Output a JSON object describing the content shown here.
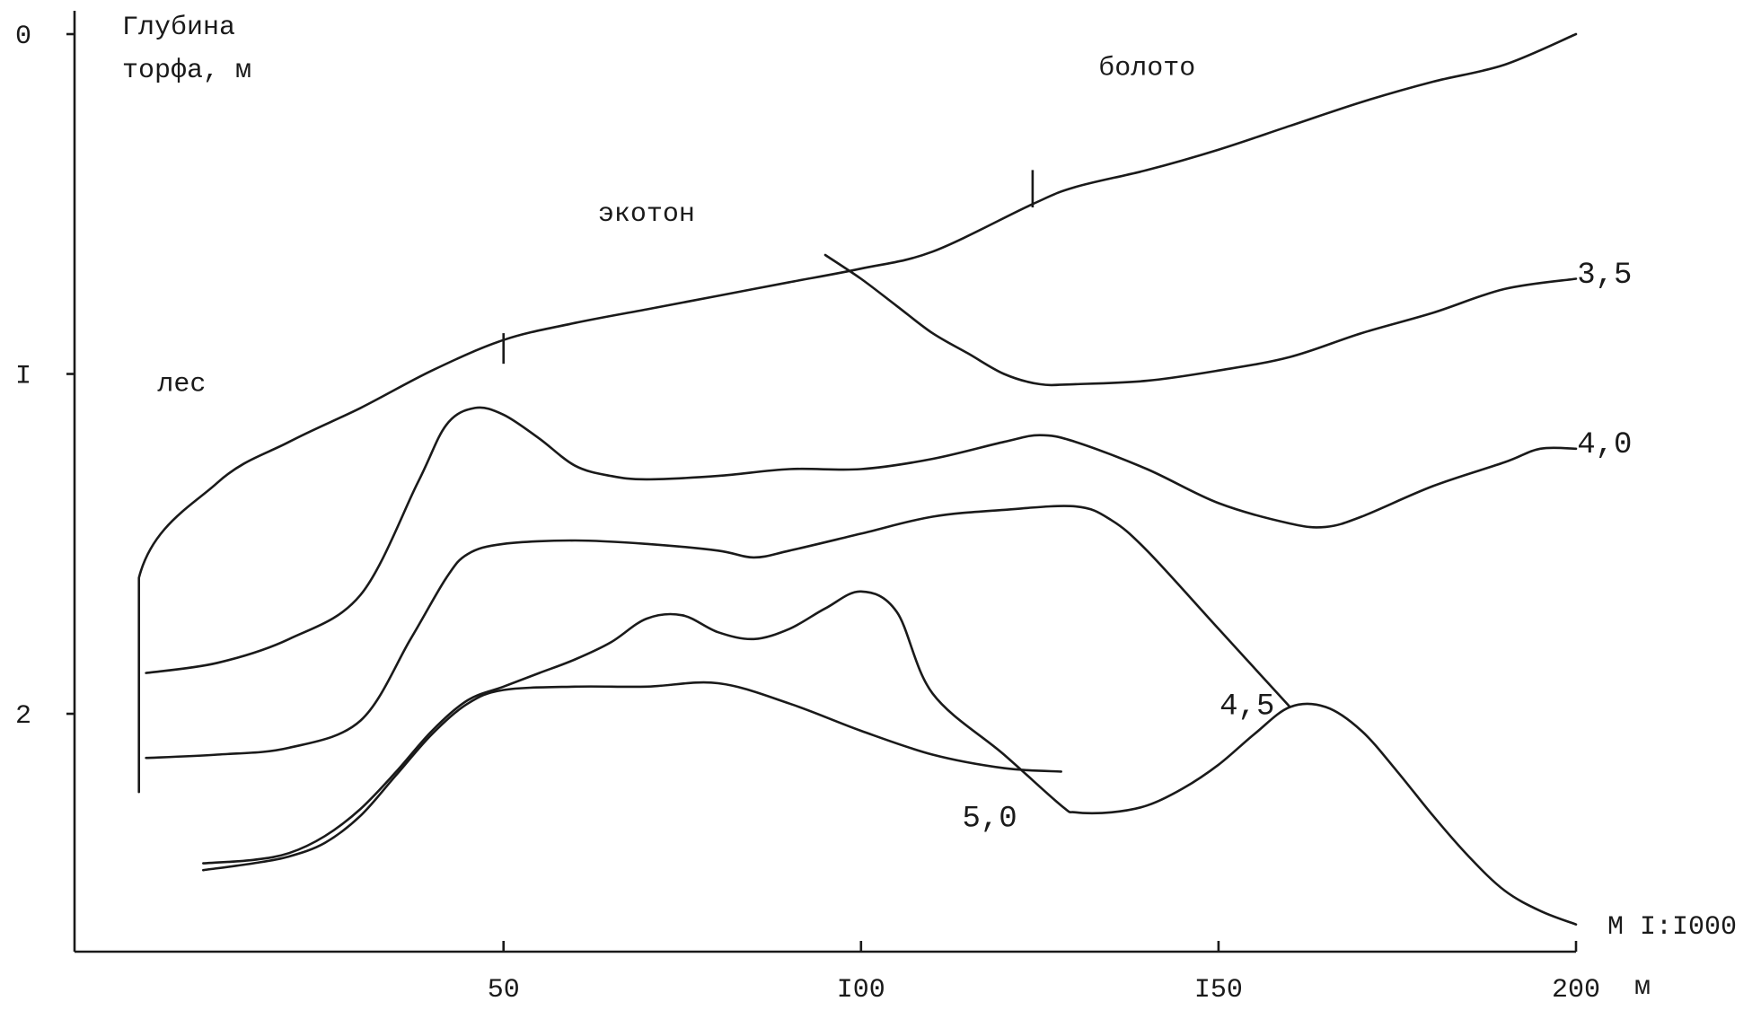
{
  "chart_data": {
    "type": "line",
    "ylabel_line1": "Глубина",
    "ylabel_line2": "торфа, м",
    "xunit": "м",
    "scale": "М I:I000",
    "xlim": [
      -10,
      200
    ],
    "ylim": [
      0,
      2.7
    ],
    "x_ticks": [
      {
        "value": 50,
        "label": "50"
      },
      {
        "value": 100,
        "label": "I00"
      },
      {
        "value": 150,
        "label": "I50"
      },
      {
        "value": 200,
        "label": "200"
      }
    ],
    "y_ticks": [
      {
        "value": 0,
        "label": "0"
      },
      {
        "value": 1,
        "label": "I"
      },
      {
        "value": 2,
        "label": "2"
      }
    ],
    "zones": [
      {
        "label": "лес",
        "x": 5,
        "y": 1.05
      },
      {
        "label": "экотон",
        "x": 70,
        "y": 0.55
      },
      {
        "label": "болото",
        "x": 140,
        "y": 0.12
      }
    ],
    "boundaries": [
      {
        "x": 50,
        "y_top": 0.88,
        "y_bottom": 0.97
      },
      {
        "x": 124,
        "y_top": 0.4,
        "y_bottom": 0.51
      }
    ],
    "series": [
      {
        "name": "",
        "x": [
          -1,
          -1,
          10,
          20,
          30,
          40,
          50,
          60,
          70,
          80,
          90,
          100,
          110,
          124,
          130,
          140,
          150,
          160,
          170,
          180,
          190,
          200
        ],
        "y": [
          2.23,
          1.6,
          1.32,
          1.2,
          1.1,
          0.99,
          0.9,
          0.85,
          0.81,
          0.77,
          0.73,
          0.69,
          0.64,
          0.5,
          0.45,
          0.4,
          0.34,
          0.27,
          0.2,
          0.14,
          0.09,
          0.0
        ]
      },
      {
        "name": "",
        "x": [
          95,
          100,
          105,
          110,
          115,
          120,
          125,
          130,
          140,
          150,
          160,
          170,
          180,
          190,
          200
        ],
        "y": [
          0.65,
          0.72,
          0.8,
          0.88,
          0.94,
          1.0,
          1.03,
          1.03,
          1.02,
          0.99,
          0.95,
          0.88,
          0.82,
          0.75,
          0.72
        ]
      },
      {
        "name": "",
        "x": [
          0,
          10,
          20,
          30,
          38,
          42,
          46,
          50,
          55,
          60,
          65,
          70,
          80,
          90,
          100,
          110,
          120,
          125,
          130,
          140,
          150,
          160,
          165,
          170,
          180,
          190,
          195,
          200
        ],
        "y": [
          1.88,
          1.85,
          1.78,
          1.65,
          1.32,
          1.15,
          1.1,
          1.12,
          1.19,
          1.27,
          1.3,
          1.31,
          1.3,
          1.28,
          1.28,
          1.25,
          1.2,
          1.18,
          1.2,
          1.28,
          1.38,
          1.44,
          1.45,
          1.42,
          1.33,
          1.26,
          1.22,
          1.22
        ]
      },
      {
        "name": "",
        "x": [
          0,
          10,
          20,
          30,
          37,
          42,
          45,
          50,
          60,
          70,
          80,
          85,
          90,
          100,
          110,
          120,
          130,
          135,
          140,
          150,
          160
        ],
        "y": [
          2.13,
          2.12,
          2.1,
          2.02,
          1.78,
          1.6,
          1.53,
          1.5,
          1.49,
          1.5,
          1.52,
          1.54,
          1.52,
          1.47,
          1.42,
          1.4,
          1.39,
          1.43,
          1.52,
          1.75,
          1.98
        ]
      },
      {
        "name": "",
        "x": [
          8,
          15,
          20,
          25,
          30,
          35,
          40,
          45,
          50,
          55,
          60,
          65,
          70,
          75,
          80,
          85,
          90,
          95,
          100,
          105,
          110,
          120,
          128,
          130,
          135,
          140,
          145,
          150,
          155,
          160,
          165,
          170,
          175,
          180,
          185,
          190,
          195,
          200
        ],
        "y": [
          2.44,
          2.43,
          2.41,
          2.36,
          2.28,
          2.17,
          2.05,
          1.96,
          1.92,
          1.88,
          1.84,
          1.79,
          1.72,
          1.71,
          1.76,
          1.78,
          1.75,
          1.69,
          1.64,
          1.7,
          1.94,
          2.12,
          2.27,
          2.29,
          2.29,
          2.27,
          2.22,
          2.15,
          2.06,
          1.98,
          1.98,
          2.05,
          2.17,
          2.3,
          2.42,
          2.52,
          2.58,
          2.62
        ]
      },
      {
        "name": "",
        "x": [
          8,
          15,
          20,
          25,
          30,
          35,
          40,
          45,
          50,
          60,
          70,
          80,
          90,
          100,
          110,
          120,
          128
        ],
        "y": [
          2.46,
          2.44,
          2.42,
          2.38,
          2.3,
          2.18,
          2.06,
          1.97,
          1.93,
          1.92,
          1.92,
          1.91,
          1.97,
          2.05,
          2.12,
          2.16,
          2.17
        ]
      }
    ],
    "data_labels": [
      {
        "text": "3,5",
        "x": 204,
        "y": 0.7
      },
      {
        "text": "4,0",
        "x": 204,
        "y": 1.2
      },
      {
        "text": "4,5",
        "x": 154,
        "y": 1.97
      },
      {
        "text": "5,0",
        "x": 118,
        "y": 2.3
      }
    ]
  }
}
